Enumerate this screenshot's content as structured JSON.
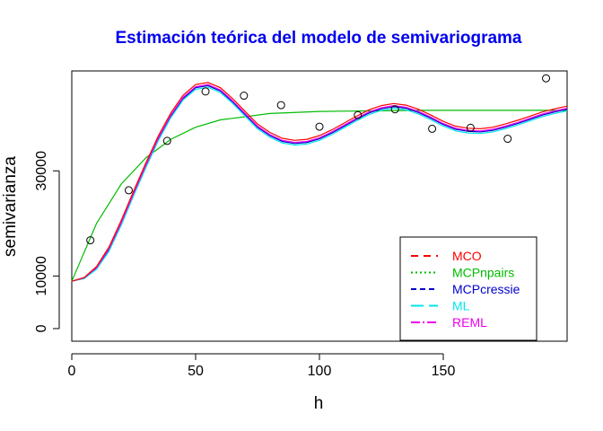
{
  "chart_data": {
    "type": "scatter",
    "title": "Estimación teórica del modelo de semivariograma",
    "xlabel": "h",
    "ylabel": "semivarianza",
    "xlim": [
      0,
      200
    ],
    "ylim": [
      -2400,
      49000
    ],
    "x_ticks": [
      0,
      50,
      100,
      150
    ],
    "y_ticks": [
      0,
      10000,
      30000
    ],
    "x_tick_labels": [
      "0",
      "50",
      "100",
      "150"
    ],
    "y_tick_labels": [
      "0",
      "10000",
      "30000"
    ],
    "grid": false,
    "legend_position": "bottom-right",
    "colors": {
      "title": "#0000ee",
      "MCO": "#ff0000",
      "MCPnpairs": "#00bb00",
      "MCPcressie": "#0000cc",
      "ML": "#00e5ee",
      "REML": "#ee00ee"
    },
    "points": {
      "x": [
        7.5,
        23,
        38.5,
        54,
        69.5,
        84.5,
        100,
        115.5,
        130.5,
        145.5,
        161,
        176,
        191.5
      ],
      "y": [
        16800,
        26300,
        35700,
        45100,
        44300,
        42500,
        38400,
        40600,
        41700,
        38000,
        38200,
        36100,
        47600
      ]
    },
    "series": [
      {
        "name": "MCPnpairs",
        "x": [
          0,
          10,
          20,
          30,
          40,
          50,
          60,
          80,
          100,
          120,
          140,
          160,
          180,
          200
        ],
        "y": [
          9000,
          20000,
          27500,
          32500,
          36000,
          38300,
          39700,
          40900,
          41300,
          41400,
          41500,
          41500,
          41500,
          41500
        ]
      },
      {
        "name": "MCPcressie",
        "x": [
          0,
          5,
          10,
          15,
          20,
          25,
          30,
          35,
          40,
          45,
          50,
          55,
          60,
          65,
          70,
          75,
          80,
          85,
          90,
          95,
          100,
          105,
          110,
          115,
          120,
          125,
          130,
          135,
          140,
          145,
          150,
          155,
          160,
          165,
          170,
          175,
          180,
          185,
          190,
          195,
          200
        ],
        "y": [
          9000,
          9600,
          11500,
          15000,
          20000,
          25600,
          31000,
          36100,
          40400,
          43800,
          45800,
          46200,
          45200,
          43100,
          40700,
          38300,
          36700,
          35600,
          35200,
          35400,
          36100,
          37200,
          38500,
          39800,
          41000,
          41800,
          42200,
          41900,
          41100,
          40000,
          38800,
          37900,
          37500,
          37400,
          37700,
          38300,
          39000,
          39800,
          40600,
          41200,
          41700
        ]
      },
      {
        "name": "ML",
        "x": [
          0,
          5,
          10,
          15,
          20,
          25,
          30,
          35,
          40,
          45,
          50,
          55,
          60,
          65,
          70,
          75,
          80,
          85,
          90,
          95,
          100,
          105,
          110,
          115,
          120,
          125,
          130,
          135,
          140,
          145,
          150,
          155,
          160,
          165,
          170,
          175,
          180,
          185,
          190,
          195,
          200
        ],
        "y": [
          9000,
          9500,
          11300,
          14700,
          19700,
          25300,
          30700,
          35800,
          40100,
          43500,
          45500,
          45900,
          44900,
          42800,
          40400,
          38000,
          36400,
          35300,
          34900,
          35100,
          35800,
          36900,
          38200,
          39500,
          40700,
          41500,
          41900,
          41600,
          40800,
          39700,
          38500,
          37600,
          37200,
          37100,
          37400,
          38000,
          38700,
          39500,
          40300,
          40900,
          41400
        ]
      },
      {
        "name": "REML",
        "x": [
          0,
          5,
          10,
          15,
          20,
          25,
          30,
          35,
          40,
          45,
          50,
          55,
          60,
          65,
          70,
          75,
          80,
          85,
          90,
          95,
          100,
          105,
          110,
          115,
          120,
          125,
          130,
          135,
          140,
          145,
          150,
          155,
          160,
          165,
          170,
          175,
          180,
          185,
          190,
          195,
          200
        ],
        "y": [
          9000,
          9650,
          11600,
          15200,
          20200,
          25800,
          31200,
          36300,
          40600,
          44000,
          46000,
          46400,
          45400,
          43300,
          40900,
          38500,
          36900,
          35800,
          35400,
          35600,
          36300,
          37400,
          38700,
          40000,
          41200,
          42000,
          42400,
          42100,
          41300,
          40200,
          39000,
          38100,
          37700,
          37600,
          37900,
          38500,
          39200,
          40000,
          40800,
          41400,
          41900
        ]
      },
      {
        "name": "MCO",
        "x": [
          0,
          5,
          10,
          15,
          20,
          25,
          30,
          35,
          40,
          45,
          50,
          55,
          60,
          65,
          70,
          75,
          80,
          85,
          90,
          95,
          100,
          105,
          110,
          115,
          120,
          125,
          130,
          135,
          140,
          145,
          150,
          155,
          160,
          165,
          170,
          175,
          180,
          185,
          190,
          195,
          200
        ],
        "y": [
          9000,
          9700,
          11800,
          15500,
          20600,
          26200,
          31600,
          36700,
          41000,
          44400,
          46400,
          46800,
          45800,
          43700,
          41300,
          38900,
          37300,
          36200,
          35800,
          36000,
          36700,
          37800,
          39100,
          40400,
          41600,
          42400,
          42800,
          42500,
          41700,
          40600,
          39400,
          38500,
          38100,
          38000,
          38300,
          38900,
          39600,
          40400,
          41200,
          41800,
          42300
        ]
      }
    ],
    "legend": [
      {
        "label": "MCO",
        "dash": "8,6"
      },
      {
        "label": "MCPnpairs",
        "dash": "2,3"
      },
      {
        "label": "MCPcressie",
        "dash": "6,4"
      },
      {
        "label": "ML",
        "dash": "14,6"
      },
      {
        "label": "REML",
        "dash": "10,3,2,3"
      }
    ]
  }
}
